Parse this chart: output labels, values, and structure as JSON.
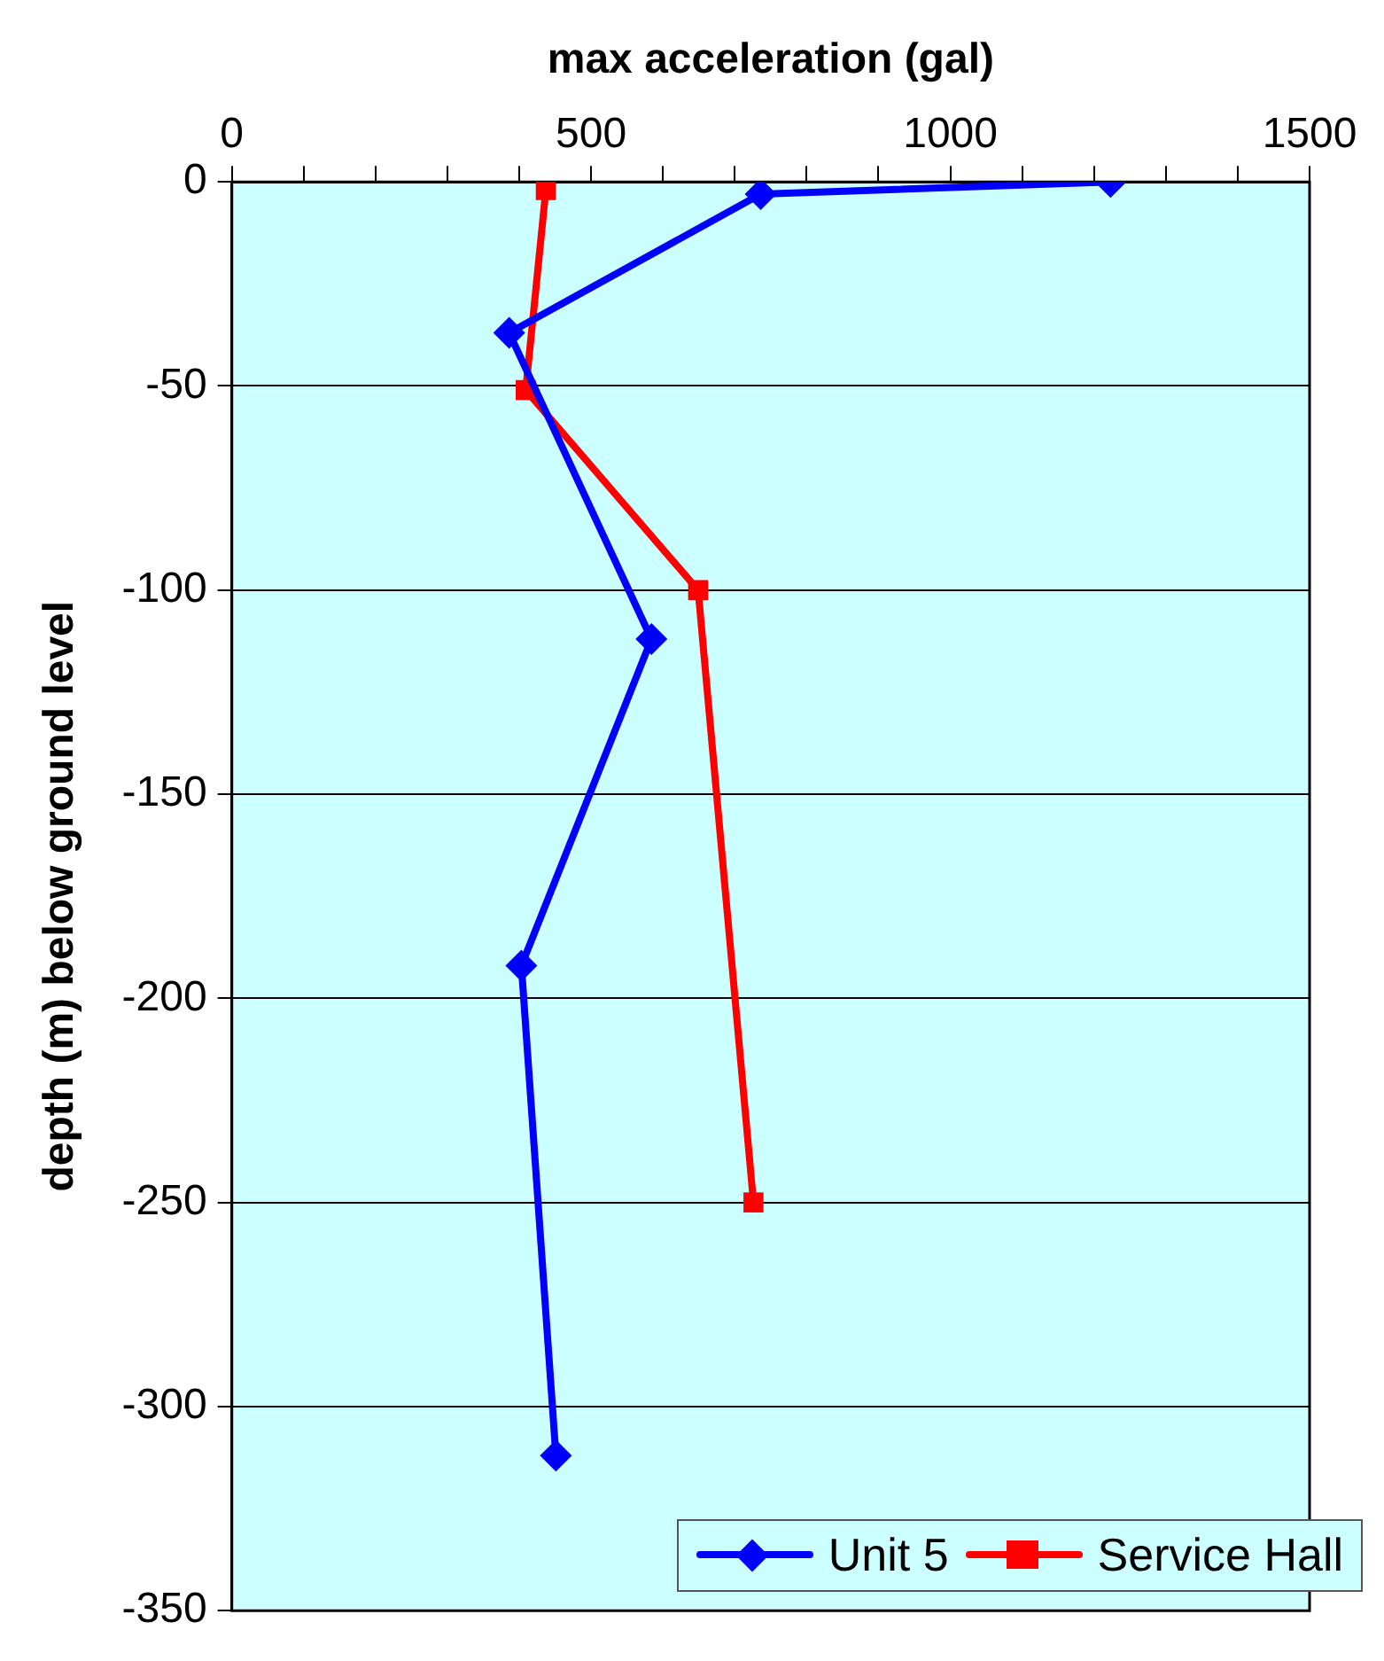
{
  "chart_data": {
    "type": "line",
    "xlabel": "max acceleration (gal)",
    "ylabel": "depth (m) below ground level",
    "series": [
      {
        "name": "Unit 5",
        "color": "#0000ff",
        "marker": "diamond",
        "x": [
          1223,
          736,
          386,
          584,
          403,
          451
        ],
        "values": [
          0,
          -3,
          -37,
          -112,
          -192,
          -312
        ]
      },
      {
        "name": "Service Hall",
        "color": "#ff0000",
        "marker": "square",
        "x": [
          437,
          409,
          649,
          726
        ],
        "values": [
          -2,
          -51,
          -100,
          -250
        ]
      }
    ],
    "xlim": [
      0,
      1500
    ],
    "xticks": [
      0,
      {
        "value": 100,
        "label": null
      },
      {
        "value": 200,
        "label": null
      },
      {
        "value": 300,
        "label": null
      },
      {
        "value": 400,
        "label": null
      },
      500,
      {
        "value": 600,
        "label": null
      },
      {
        "value": 700,
        "label": null
      },
      {
        "value": 800,
        "label": null
      },
      {
        "value": 900,
        "label": null
      },
      1000,
      {
        "value": 1100,
        "label": null
      },
      {
        "value": 1200,
        "label": null
      },
      {
        "value": 1300,
        "label": null
      },
      {
        "value": 1400,
        "label": null
      },
      1500
    ],
    "ylim": [
      -350,
      0
    ],
    "yticks": [
      -350,
      -300,
      -250,
      -200,
      -150,
      -100,
      -50,
      0
    ],
    "grid": "y",
    "legend": "bottom right",
    "line_style": "solid"
  }
}
